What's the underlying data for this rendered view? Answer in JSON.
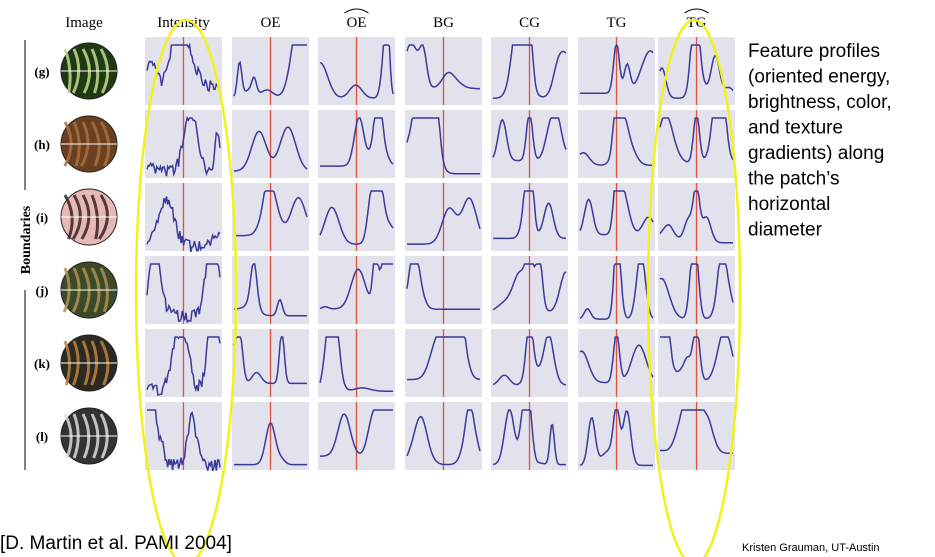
{
  "figure": {
    "columns": [
      "Image",
      "Intensity",
      "OE",
      "OE",
      "BG",
      "CG",
      "TG",
      "TG"
    ],
    "rows": [
      "(g)",
      "(h)",
      "(i)",
      "(j)",
      "(k)",
      "(l)"
    ],
    "side_label": "Boundaries"
  },
  "note": [
    "Feature profiles",
    "(oriented energy,",
    "brightness, color,",
    "and texture",
    "gradients) along",
    "the patch’s",
    "horizontal",
    "diameter"
  ],
  "citation": "[D. Martin et al. PAMI 2004]",
  "credit": "Kristen Grauman, UT-Austin"
}
